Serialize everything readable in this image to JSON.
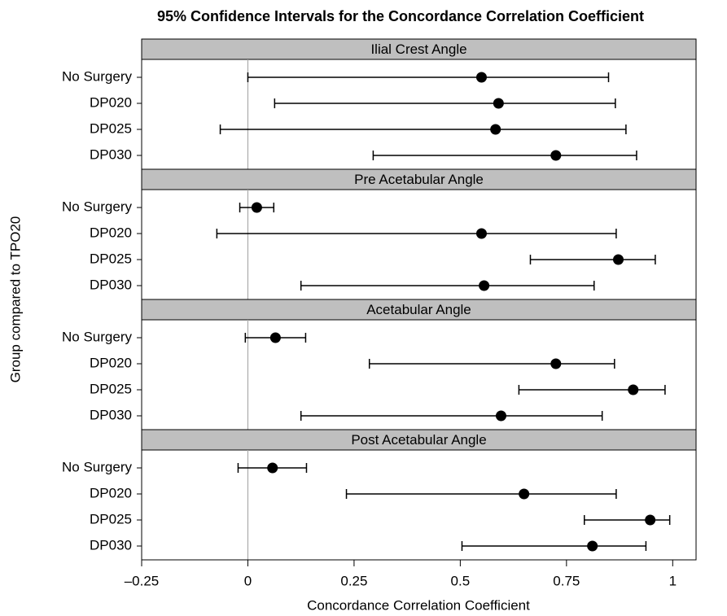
{
  "chart_data": {
    "type": "forest",
    "title": "95% Confidence Intervals for the Concordance Correlation Coefficient",
    "xlabel": "Concordance Correlation Coefficient",
    "ylabel": "Group compared to TPO20",
    "xlim": [
      -0.25,
      1.055
    ],
    "xticks": [
      {
        "value": -0.25,
        "label": "–0.25"
      },
      0,
      0.25,
      0.5,
      0.75,
      1
    ],
    "reference_line": 0,
    "color": "#000000",
    "panels": [
      {
        "title": "Ilial Crest Angle",
        "categories": [
          "No Surgery",
          "DP020",
          "DP025",
          "DP030"
        ],
        "values": [
          0.55,
          0.59,
          0.583,
          0.725
        ],
        "lower": [
          0.0,
          0.063,
          -0.065,
          0.295
        ],
        "upper": [
          0.849,
          0.865,
          0.89,
          0.915
        ]
      },
      {
        "title": "Pre Acetabular Angle",
        "categories": [
          "No Surgery",
          "DP020",
          "DP025",
          "DP030"
        ],
        "values": [
          0.021,
          0.55,
          0.872,
          0.556
        ],
        "lower": [
          -0.019,
          -0.073,
          0.665,
          0.125
        ],
        "upper": [
          0.061,
          0.867,
          0.959,
          0.815
        ]
      },
      {
        "title": "Acetabular Angle",
        "categories": [
          "No Surgery",
          "DP020",
          "DP025",
          "DP030"
        ],
        "values": [
          0.065,
          0.725,
          0.907,
          0.596
        ],
        "lower": [
          -0.006,
          0.286,
          0.638,
          0.125
        ],
        "upper": [
          0.136,
          0.863,
          0.982,
          0.834
        ]
      },
      {
        "title": "Post Acetabular Angle",
        "categories": [
          "No Surgery",
          "DP020",
          "DP025",
          "DP030"
        ],
        "values": [
          0.058,
          0.65,
          0.947,
          0.811
        ],
        "lower": [
          -0.023,
          0.232,
          0.792,
          0.504
        ],
        "upper": [
          0.138,
          0.867,
          0.993,
          0.937
        ]
      }
    ]
  }
}
